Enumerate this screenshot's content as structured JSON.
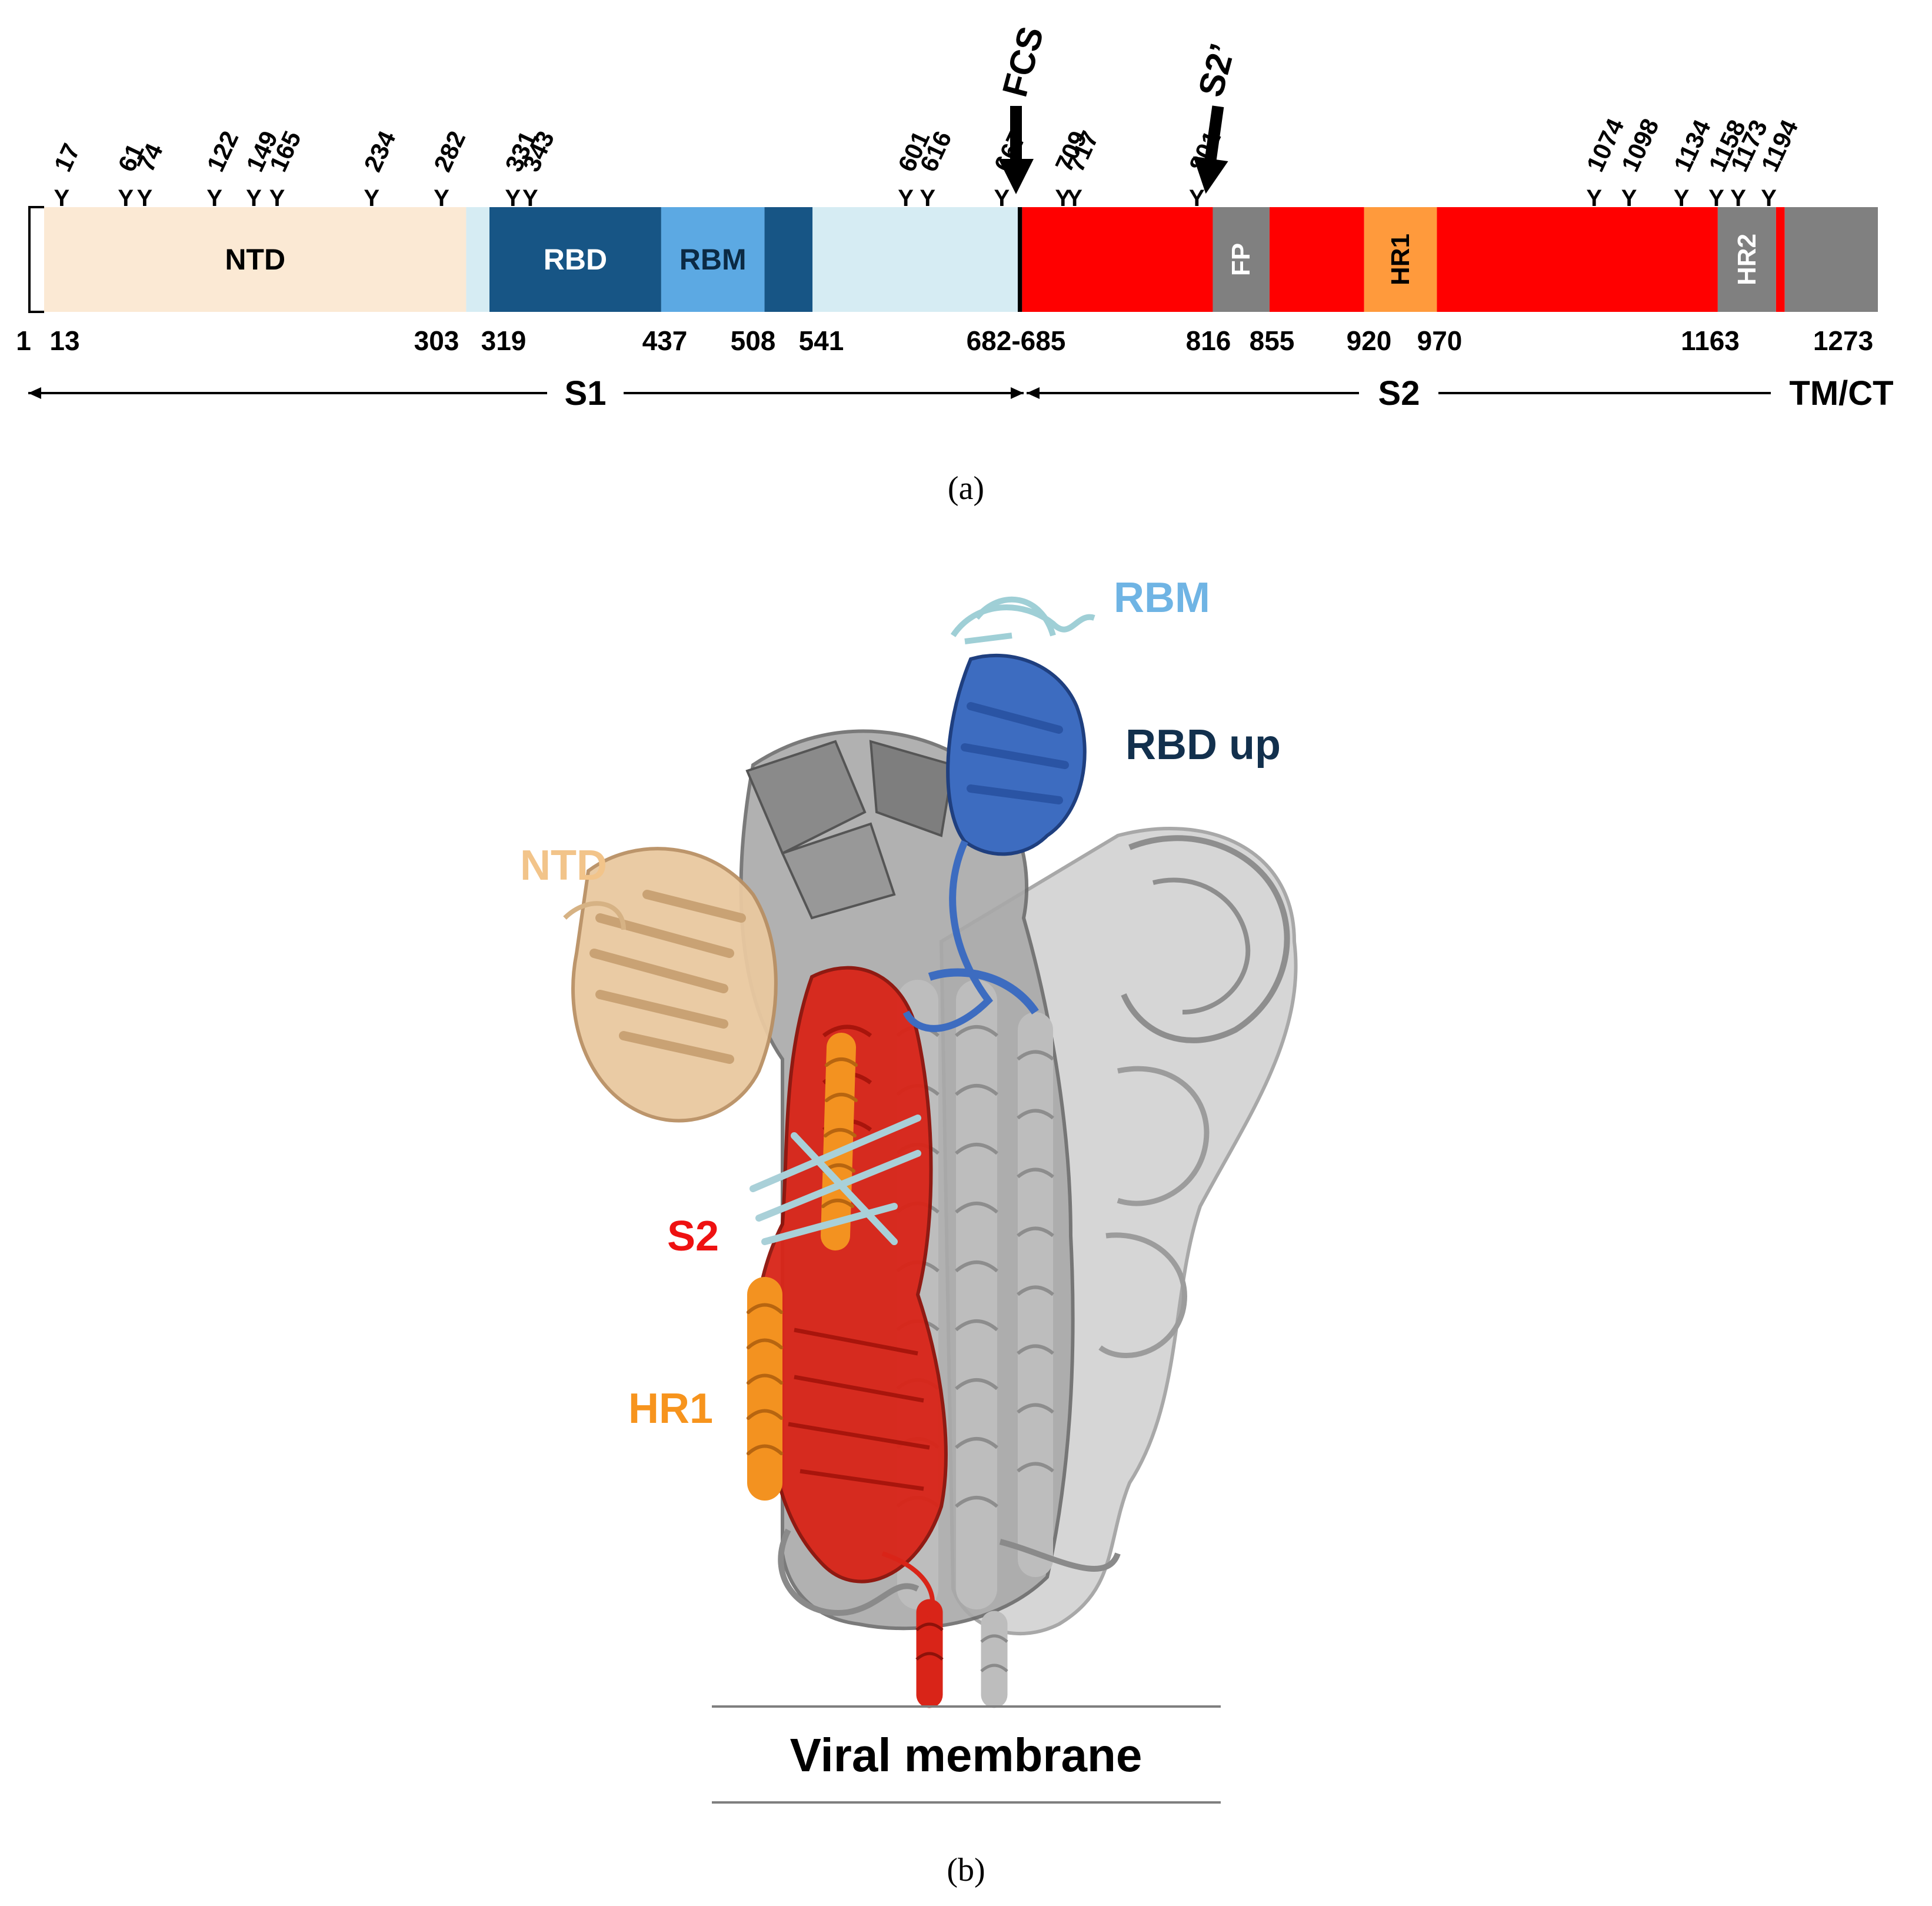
{
  "panel_a": {
    "caption": "(a)",
    "domains": [
      {
        "name": "signal-peptide",
        "label": "",
        "start": 1,
        "end": 13,
        "color": "#ffffff"
      },
      {
        "name": "ntd",
        "label": "NTD",
        "start": 13,
        "end": 303,
        "color": "#fbe9d4",
        "text_color": "#000000"
      },
      {
        "name": "s1-linker-1",
        "label": "",
        "start": 303,
        "end": 319,
        "color": "#d6ecf3"
      },
      {
        "name": "rbd-1",
        "label": "RBD",
        "start": 319,
        "end": 437,
        "color": "#175585",
        "text_color": "#ffffff"
      },
      {
        "name": "rbm",
        "label": "RBM",
        "start": 437,
        "end": 508,
        "color": "#5ca9e3",
        "text_color": "#0b2a44"
      },
      {
        "name": "rbd-2",
        "label": "",
        "start": 508,
        "end": 541,
        "color": "#175585"
      },
      {
        "name": "sd",
        "label": "",
        "start": 541,
        "end": 682,
        "color": "#d6ecf3"
      },
      {
        "name": "fcs-bar",
        "label": "",
        "start": 682,
        "end": 685,
        "color": "#000000"
      },
      {
        "name": "s2-a",
        "label": "",
        "start": 685,
        "end": 816,
        "color": "#ff0000"
      },
      {
        "name": "fp",
        "label": "FP",
        "start": 816,
        "end": 855,
        "color": "#808080",
        "text_color": "#ffffff",
        "vertical": true
      },
      {
        "name": "s2-b",
        "label": "",
        "start": 855,
        "end": 920,
        "color": "#ff0000"
      },
      {
        "name": "hr1",
        "label": "HR1",
        "start": 920,
        "end": 970,
        "color": "#ff9a3c",
        "text_color": "#000000",
        "vertical": true
      },
      {
        "name": "s2-c",
        "label": "",
        "start": 970,
        "end": 1163,
        "color": "#ff0000"
      },
      {
        "name": "hr2",
        "label": "HR2",
        "start": 1163,
        "end": 1203,
        "color": "#808080",
        "text_color": "#ffffff",
        "vertical": true
      },
      {
        "name": "s2-d",
        "label": "",
        "start": 1203,
        "end": 1209,
        "color": "#ff0000"
      },
      {
        "name": "tm-ct",
        "label": "",
        "start": 1209,
        "end": 1273,
        "color": "#808080"
      }
    ],
    "position_labels": [
      "1",
      "13",
      "303",
      "319",
      "437",
      "508",
      "541",
      "682-685",
      "816",
      "855",
      "920",
      "970",
      "1163",
      "1273"
    ],
    "glycosylation_sites": [
      "17",
      "61",
      "74",
      "122",
      "149",
      "165",
      "234",
      "282",
      "331",
      "343",
      "601",
      "616",
      "667",
      "709",
      "717",
      "801",
      "1074",
      "1098",
      "1134",
      "1158",
      "1173",
      "1194"
    ],
    "glycan_symbol": "Y",
    "cleavage_sites": [
      {
        "name": "fcs",
        "label": "FCS",
        "residue": 683
      },
      {
        "name": "s2-prime",
        "label": "S2’",
        "residue": 816
      }
    ],
    "subunits": [
      {
        "name": "s1",
        "label": "S1",
        "start": 1,
        "end": 684
      },
      {
        "name": "s2",
        "label": "S2",
        "start": 685,
        "end": 1209
      },
      {
        "name": "tm-ct",
        "label": "TM/CT",
        "start": 1209,
        "end": 1273
      }
    ],
    "colors": {
      "red": "#ff0000",
      "dark_blue": "#175585",
      "light_blue": "#5ca9e3",
      "orange": "#ff9a3c",
      "gray": "#808080"
    }
  },
  "panel_b": {
    "caption": "(b)",
    "labels": [
      {
        "name": "rbm",
        "text": "RBM",
        "color": "#6fb4e4"
      },
      {
        "name": "rbd-up",
        "text": "RBD up",
        "color": "#12304d"
      },
      {
        "name": "ntd",
        "text": "NTD",
        "color": "#f2c48a"
      },
      {
        "name": "s2",
        "text": "S2",
        "color": "#ee1111"
      },
      {
        "name": "hr1",
        "text": "HR1",
        "color": "#f7941d"
      }
    ],
    "membrane_label": "Viral membrane"
  }
}
